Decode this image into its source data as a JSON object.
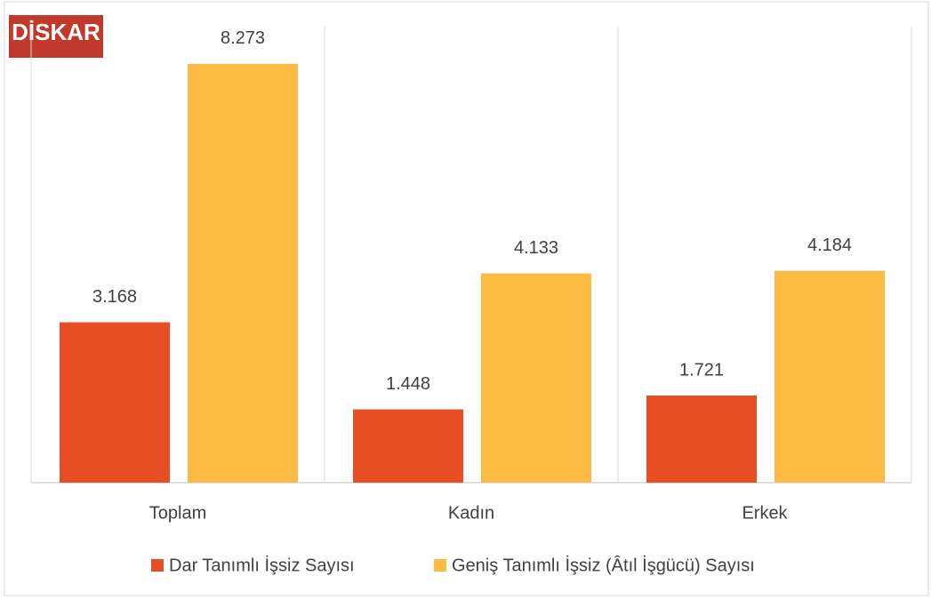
{
  "chart_data": {
    "type": "bar",
    "logo": "DİSKAR",
    "categories": [
      "Toplam",
      "Kadın",
      "Erkek"
    ],
    "series": [
      {
        "name": "Dar Tanımlı İşsiz Sayısı",
        "color": "#e84e24",
        "values": [
          3.168,
          1.448,
          1.721
        ]
      },
      {
        "name": "Geniş Tanımlı İşsiz (Âtıl İşgücü) Sayısı",
        "color": "#fdbb44",
        "values": [
          8.273,
          4.133,
          4.184
        ]
      }
    ],
    "ylim": [
      0,
      9.5
    ],
    "legend": "bottom"
  }
}
